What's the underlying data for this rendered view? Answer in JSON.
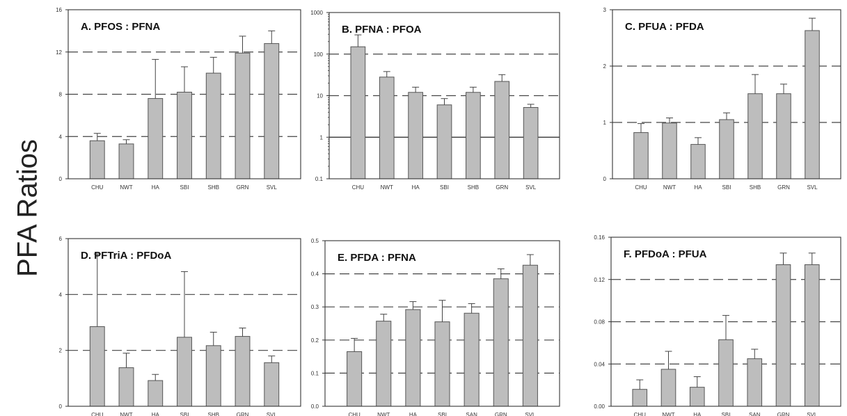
{
  "figure": {
    "y_axis_label": "PFA Ratios"
  },
  "chart_data": [
    {
      "type": "bar",
      "title": "A.  PFOS : PFNA",
      "categories": [
        "CHU",
        "NWT",
        "HA",
        "SBI",
        "SHB",
        "GRN",
        "SVL"
      ],
      "values": [
        3.6,
        3.3,
        7.6,
        8.2,
        10.0,
        11.9,
        12.8
      ],
      "error_upper": [
        4.3,
        3.7,
        11.3,
        10.6,
        11.5,
        13.5,
        14.0
      ],
      "yscale": "linear",
      "ylim": [
        0,
        16
      ],
      "yticks": [
        0,
        4,
        8,
        12,
        16
      ],
      "ytick_labels": [
        "0",
        "4",
        "8",
        "12",
        "16"
      ],
      "reference_lines": [
        4,
        8,
        12
      ],
      "reference_style": "dashed"
    },
    {
      "type": "bar",
      "title": "B.  PFNA : PFOA",
      "categories": [
        "CHU",
        "NWT",
        "HA",
        "SBI",
        "SHB",
        "GRN",
        "SVL"
      ],
      "values": [
        150,
        28,
        12,
        6,
        12,
        22,
        5.2
      ],
      "error_upper": [
        290,
        38,
        16,
        8.5,
        16,
        32,
        6.2
      ],
      "yscale": "log",
      "ylim": [
        0.1,
        1000
      ],
      "yticks": [
        0.1,
        1,
        10,
        100,
        1000
      ],
      "ytick_labels": [
        "0.1",
        "1",
        "10",
        "100",
        "1000"
      ],
      "reference_lines": [
        10,
        100
      ],
      "reference_style": "dashed",
      "solid_lines": [
        1
      ]
    },
    {
      "type": "bar",
      "title": "C.  PFUA : PFDA",
      "categories": [
        "CHU",
        "NWT",
        "HA",
        "SBI",
        "SHB",
        "GRN",
        "SVL"
      ],
      "values": [
        0.82,
        0.99,
        0.61,
        1.05,
        1.51,
        1.51,
        2.63
      ],
      "error_upper": [
        0.98,
        1.08,
        0.73,
        1.17,
        1.85,
        1.68,
        2.85
      ],
      "yscale": "linear",
      "ylim": [
        0,
        3
      ],
      "yticks": [
        0,
        1,
        2,
        3
      ],
      "ytick_labels": [
        "0",
        "1",
        "2",
        "3"
      ],
      "reference_lines": [
        1,
        2
      ],
      "reference_style": "dashed"
    },
    {
      "type": "bar",
      "title": "D.  PFTriA : PFDoA",
      "categories": [
        "CHU",
        "NWT",
        "HA",
        "SBI",
        "SHB",
        "GRN",
        "SVL"
      ],
      "values": [
        2.85,
        1.38,
        0.92,
        2.47,
        2.17,
        2.5,
        1.56
      ],
      "error_upper": [
        5.45,
        1.9,
        1.14,
        4.82,
        2.65,
        2.8,
        1.8
      ],
      "yscale": "linear",
      "ylim": [
        0,
        6
      ],
      "yticks": [
        0,
        2,
        4,
        6
      ],
      "ytick_labels": [
        "0",
        "2",
        "4",
        "6"
      ],
      "reference_lines": [
        2,
        4
      ],
      "reference_style": "dashed"
    },
    {
      "type": "bar",
      "title": "E.  PFDA : PFNA",
      "categories": [
        "CHU",
        "NWT",
        "HA",
        "SBI",
        "SAN",
        "GRN",
        "SVL"
      ],
      "values": [
        0.165,
        0.257,
        0.292,
        0.255,
        0.281,
        0.385,
        0.426
      ],
      "error_upper": [
        0.205,
        0.278,
        0.316,
        0.32,
        0.31,
        0.415,
        0.458
      ],
      "yscale": "linear",
      "ylim": [
        0,
        0.5
      ],
      "yticks": [
        0,
        0.1,
        0.2,
        0.3,
        0.4,
        0.5
      ],
      "ytick_labels": [
        "0.0",
        "0.1",
        "0.2",
        "0.3",
        "0.4",
        "0.5"
      ],
      "reference_lines": [
        0.1,
        0.2,
        0.3,
        0.4
      ],
      "reference_style": "dashed"
    },
    {
      "type": "bar",
      "title": "F.  PFDoA : PFUA",
      "categories": [
        "CHU",
        "NWT",
        "HA",
        "SBI",
        "SAN",
        "GRN",
        "SVL"
      ],
      "values": [
        0.016,
        0.035,
        0.018,
        0.063,
        0.045,
        0.134,
        0.134
      ],
      "error_upper": [
        0.025,
        0.052,
        0.028,
        0.086,
        0.054,
        0.145,
        0.145
      ],
      "yscale": "linear",
      "ylim": [
        0,
        0.16
      ],
      "yticks": [
        0,
        0.04,
        0.08,
        0.12,
        0.16
      ],
      "ytick_labels": [
        "0.00",
        "0.04",
        "0.08",
        "0.12",
        "0.16"
      ],
      "reference_lines": [
        0.04,
        0.08,
        0.12
      ],
      "reference_style": "dashed"
    }
  ],
  "colors": {
    "bar_fill": "#bdbdbd",
    "bar_stroke": "#555555",
    "axis": "#333333",
    "text": "#111111"
  }
}
